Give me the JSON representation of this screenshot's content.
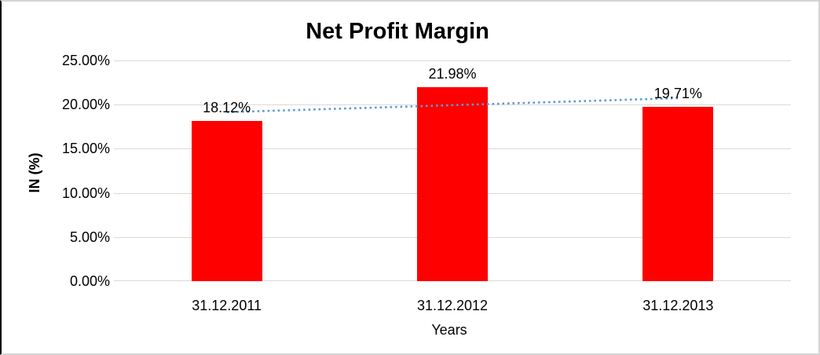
{
  "frame": {
    "background": "#ffffff",
    "border_color": "#d4d4d4",
    "left_border_color": "#000000"
  },
  "chart_data": {
    "type": "bar",
    "title": "Net Profit Margin",
    "categories": [
      "31.12.2011",
      "31.12.2012",
      "31.12.2013"
    ],
    "values": [
      18.12,
      21.98,
      19.71
    ],
    "data_labels": [
      "18.12%",
      "21.98%",
      "19.71%"
    ],
    "xlabel": "Years",
    "ylabel": "IN (%)",
    "ylim": [
      0,
      25
    ],
    "ytick_step": 5,
    "ytick_labels": [
      "0.00%",
      "5.00%",
      "10.00%",
      "15.00%",
      "20.00%",
      "25.00%"
    ],
    "grid": true,
    "legend": false,
    "bar_color": "#fe0000",
    "gridline_color": "#d9d9d9",
    "text_color": "#000000",
    "trendline": {
      "type": "linear",
      "style": "dotted",
      "color": "#5b9bd5"
    }
  }
}
